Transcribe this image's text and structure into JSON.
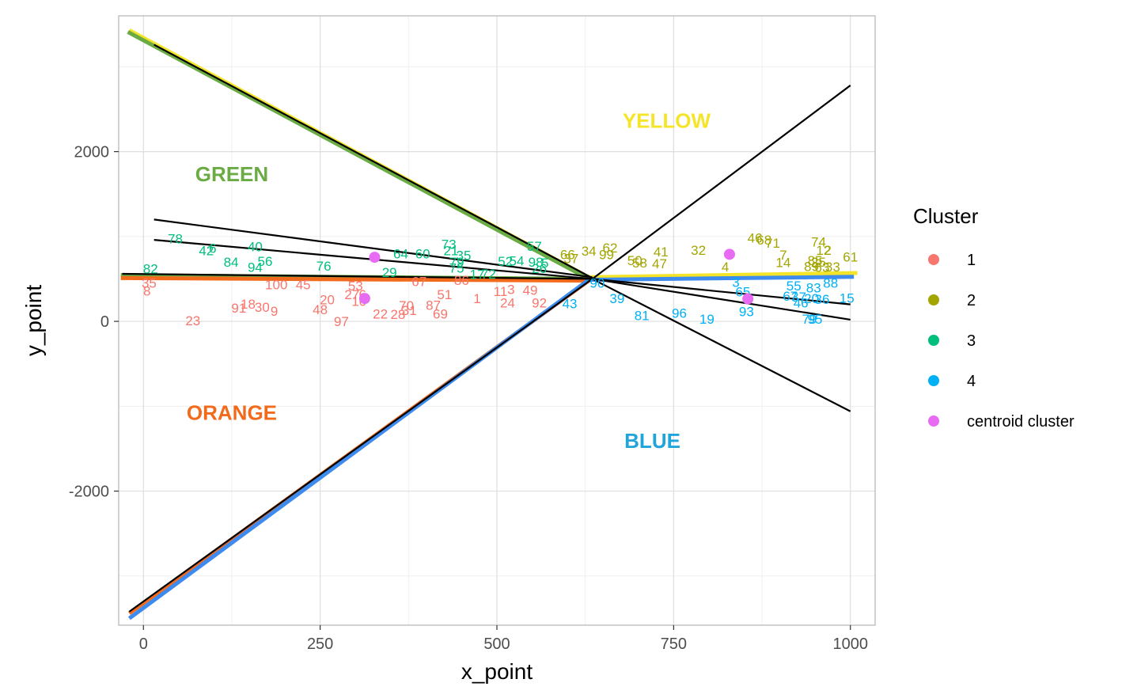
{
  "chart_data": {
    "type": "scatter",
    "xlabel": "x_point",
    "ylabel": "y_point",
    "xlim": [
      -35,
      1035
    ],
    "ylim": [
      -3580,
      3600
    ],
    "x_ticks": [
      {
        "value": 0,
        "label": "0"
      },
      {
        "value": 250,
        "label": "250"
      },
      {
        "value": 500,
        "label": "500"
      },
      {
        "value": 750,
        "label": "750"
      },
      {
        "value": 1000,
        "label": "1000"
      }
    ],
    "y_ticks": [
      {
        "value": -2000,
        "label": "-2000"
      },
      {
        "value": 0,
        "label": "0"
      },
      {
        "value": 2000,
        "label": "2000"
      }
    ],
    "grid": true,
    "legend": {
      "title": "Cluster",
      "placement": "right",
      "entries": [
        {
          "label": "1",
          "color": "#F8766D"
        },
        {
          "label": "2",
          "color": "#A3A500"
        },
        {
          "label": "3",
          "color": "#00BF7D"
        },
        {
          "label": "4",
          "color": "#00B0F6"
        },
        {
          "label": "centroid cluster",
          "color": "#E76BF3"
        }
      ]
    },
    "colors": {
      "cluster_1": "#F8766D",
      "cluster_2": "#A3A500",
      "cluster_3": "#00BF7D",
      "cluster_4": "#00B0F6",
      "centroid": "#E76BF3",
      "yellow": "#F5E52A",
      "green": "#6AAB44",
      "orange": "#F26B1D",
      "blue": "#3D8BEF",
      "black": "#000000"
    },
    "region_labels": [
      {
        "text": "YELLOW",
        "x": 740,
        "y": 2280,
        "color": "#F5E52A"
      },
      {
        "text": "GREEN",
        "x": 125,
        "y": 1650,
        "color": "#6AAB44"
      },
      {
        "text": "ORANGE",
        "x": 125,
        "y": -1160,
        "color": "#F26B1D"
      },
      {
        "text": "BLUE",
        "x": 720,
        "y": -1490,
        "color": "#1FA5DB"
      }
    ],
    "thick_lines": [
      {
        "name": "YELLOW",
        "color": "#F5E52A",
        "points": [
          [
            -20,
            3430
          ],
          [
            630,
            520
          ],
          [
            1010,
            570
          ]
        ]
      },
      {
        "name": "GREEN",
        "color": "#6AAB44",
        "points": [
          [
            -22,
            3410
          ],
          [
            630,
            500
          ],
          [
            -32,
            545
          ]
        ]
      },
      {
        "name": "ORANGE",
        "color": "#F26B1D",
        "points": [
          [
            -32,
            510
          ],
          [
            630,
            480
          ],
          [
            -20,
            -3440
          ]
        ]
      },
      {
        "name": "BLUE",
        "color": "#3D8BEF",
        "points": [
          [
            -20,
            -3500
          ],
          [
            630,
            490
          ],
          [
            1005,
            525
          ]
        ]
      }
    ],
    "black_lines": [
      [
        [
          15,
          3260
        ],
        [
          635,
          510
        ]
      ],
      [
        [
          15,
          1200
        ],
        [
          635,
          520
        ]
      ],
      [
        [
          15,
          960
        ],
        [
          635,
          500
        ]
      ],
      [
        [
          635,
          500
        ],
        [
          1000,
          2780
        ]
      ],
      [
        [
          635,
          500
        ],
        [
          1000,
          200
        ]
      ],
      [
        [
          635,
          500
        ],
        [
          1000,
          20
        ]
      ],
      [
        [
          635,
          500
        ],
        [
          1000,
          -1060
        ]
      ],
      [
        [
          -30,
          560
        ],
        [
          635,
          500
        ]
      ],
      [
        [
          -20,
          -3420
        ],
        [
          635,
          500
        ]
      ]
    ],
    "centroids": [
      {
        "x": 327,
        "y": 755
      },
      {
        "x": 313,
        "y": 270
      },
      {
        "x": 829,
        "y": 790
      },
      {
        "x": 855,
        "y": 265
      }
    ],
    "series": [
      {
        "name": "1",
        "points": [
          {
            "label": "23",
            "x": 70,
            "y": 10
          },
          {
            "label": "8",
            "x": 5,
            "y": 360
          },
          {
            "label": "35",
            "x": 8,
            "y": 455
          },
          {
            "label": "91",
            "x": 135,
            "y": 160
          },
          {
            "label": "18",
            "x": 148,
            "y": 205
          },
          {
            "label": "30",
            "x": 168,
            "y": 170
          },
          {
            "label": "9",
            "x": 185,
            "y": 120
          },
          {
            "label": "100",
            "x": 188,
            "y": 435
          },
          {
            "label": "45",
            "x": 226,
            "y": 435
          },
          {
            "label": "48",
            "x": 250,
            "y": 140
          },
          {
            "label": "20",
            "x": 260,
            "y": 255
          },
          {
            "label": "97",
            "x": 280,
            "y": 0
          },
          {
            "label": "27",
            "x": 295,
            "y": 320
          },
          {
            "label": "53",
            "x": 300,
            "y": 420
          },
          {
            "label": "10",
            "x": 305,
            "y": 240
          },
          {
            "label": "6",
            "x": 310,
            "y": 320
          },
          {
            "label": "22",
            "x": 335,
            "y": 90
          },
          {
            "label": "28",
            "x": 360,
            "y": 85
          },
          {
            "label": "70",
            "x": 372,
            "y": 185
          },
          {
            "label": "31",
            "x": 376,
            "y": 130
          },
          {
            "label": "87",
            "x": 410,
            "y": 190
          },
          {
            "label": "69",
            "x": 420,
            "y": 90
          },
          {
            "label": "51",
            "x": 426,
            "y": 320
          },
          {
            "label": "67",
            "x": 390,
            "y": 470
          },
          {
            "label": "86",
            "x": 450,
            "y": 485
          },
          {
            "label": "1",
            "x": 472,
            "y": 270
          },
          {
            "label": "11",
            "x": 505,
            "y": 355
          },
          {
            "label": "3",
            "x": 520,
            "y": 380
          },
          {
            "label": "24",
            "x": 515,
            "y": 220
          },
          {
            "label": "49",
            "x": 547,
            "y": 370
          },
          {
            "label": "92",
            "x": 560,
            "y": 220
          }
        ]
      },
      {
        "name": "2",
        "points": [
          {
            "label": "66",
            "x": 600,
            "y": 790
          },
          {
            "label": "37",
            "x": 605,
            "y": 740
          },
          {
            "label": "34",
            "x": 630,
            "y": 830
          },
          {
            "label": "62",
            "x": 660,
            "y": 870
          },
          {
            "label": "99",
            "x": 655,
            "y": 790
          },
          {
            "label": "50",
            "x": 695,
            "y": 720
          },
          {
            "label": "58",
            "x": 702,
            "y": 690
          },
          {
            "label": "41",
            "x": 732,
            "y": 820
          },
          {
            "label": "47",
            "x": 730,
            "y": 680
          },
          {
            "label": "32",
            "x": 785,
            "y": 840
          },
          {
            "label": "4",
            "x": 823,
            "y": 645
          },
          {
            "label": "46",
            "x": 865,
            "y": 985
          },
          {
            "label": "68",
            "x": 878,
            "y": 960
          },
          {
            "label": "71",
            "x": 890,
            "y": 925
          },
          {
            "label": "7",
            "x": 905,
            "y": 785
          },
          {
            "label": "14",
            "x": 905,
            "y": 695
          },
          {
            "label": "74",
            "x": 955,
            "y": 940
          },
          {
            "label": "12",
            "x": 962,
            "y": 840
          },
          {
            "label": "2",
            "x": 968,
            "y": 840
          },
          {
            "label": "85",
            "x": 950,
            "y": 720
          },
          {
            "label": "25",
            "x": 955,
            "y": 700
          },
          {
            "label": "89",
            "x": 945,
            "y": 650
          },
          {
            "label": "63",
            "x": 960,
            "y": 640
          },
          {
            "label": "33",
            "x": 975,
            "y": 645
          },
          {
            "label": "61",
            "x": 1000,
            "y": 760
          }
        ]
      },
      {
        "name": "3",
        "points": [
          {
            "label": "82",
            "x": 10,
            "y": 620
          },
          {
            "label": "78",
            "x": 45,
            "y": 975
          },
          {
            "label": "42",
            "x": 89,
            "y": 835
          },
          {
            "label": "6",
            "x": 98,
            "y": 865
          },
          {
            "label": "84",
            "x": 124,
            "y": 700
          },
          {
            "label": "40",
            "x": 158,
            "y": 880
          },
          {
            "label": "94",
            "x": 158,
            "y": 640
          },
          {
            "label": "56",
            "x": 172,
            "y": 710
          },
          {
            "label": "76",
            "x": 255,
            "y": 655
          },
          {
            "label": "29",
            "x": 348,
            "y": 580
          },
          {
            "label": "64",
            "x": 364,
            "y": 800
          },
          {
            "label": "60",
            "x": 395,
            "y": 800
          },
          {
            "label": "73",
            "x": 432,
            "y": 910
          },
          {
            "label": "21",
            "x": 435,
            "y": 835
          },
          {
            "label": "35",
            "x": 453,
            "y": 780
          },
          {
            "label": "79",
            "x": 443,
            "y": 700
          },
          {
            "label": "75",
            "x": 443,
            "y": 630
          },
          {
            "label": "17",
            "x": 472,
            "y": 555
          },
          {
            "label": "72",
            "x": 488,
            "y": 560
          },
          {
            "label": "52",
            "x": 512,
            "y": 710
          },
          {
            "label": "54",
            "x": 528,
            "y": 715
          },
          {
            "label": "57",
            "x": 553,
            "y": 885
          },
          {
            "label": "98",
            "x": 555,
            "y": 700
          },
          {
            "label": "26",
            "x": 560,
            "y": 625
          },
          {
            "label": "5",
            "x": 568,
            "y": 690
          }
        ]
      },
      {
        "name": "4",
        "points": [
          {
            "label": "90",
            "x": 642,
            "y": 455
          },
          {
            "label": "43",
            "x": 603,
            "y": 210
          },
          {
            "label": "39",
            "x": 670,
            "y": 270
          },
          {
            "label": "81",
            "x": 705,
            "y": 70
          },
          {
            "label": "96",
            "x": 758,
            "y": 100
          },
          {
            "label": "19",
            "x": 797,
            "y": 30
          },
          {
            "label": "93",
            "x": 853,
            "y": 115
          },
          {
            "label": "65",
            "x": 848,
            "y": 350
          },
          {
            "label": "3",
            "x": 838,
            "y": 460
          },
          {
            "label": "55",
            "x": 920,
            "y": 420
          },
          {
            "label": "83",
            "x": 948,
            "y": 395
          },
          {
            "label": "88",
            "x": 972,
            "y": 455
          },
          {
            "label": "67",
            "x": 915,
            "y": 300
          },
          {
            "label": "37",
            "x": 927,
            "y": 290
          },
          {
            "label": "46",
            "x": 930,
            "y": 220
          },
          {
            "label": "20",
            "x": 945,
            "y": 270
          },
          {
            "label": "36",
            "x": 960,
            "y": 260
          },
          {
            "label": "15",
            "x": 995,
            "y": 275
          },
          {
            "label": "79",
            "x": 942,
            "y": 30
          },
          {
            "label": "95",
            "x": 950,
            "y": 30
          }
        ]
      }
    ]
  }
}
